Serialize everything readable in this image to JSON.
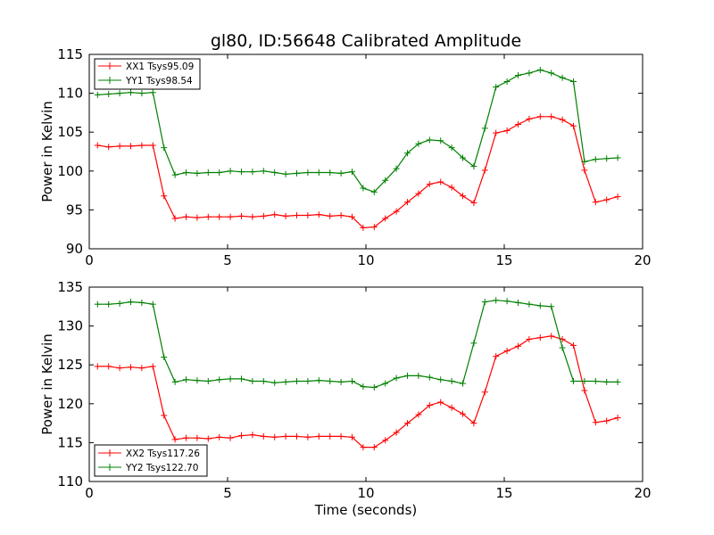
{
  "figure_title": "gl80, ID:56648 Calibrated Amplitude",
  "chart_data": [
    {
      "type": "line",
      "ylabel": "Power in Kelvin",
      "xlabel": "",
      "xlim": [
        0,
        20
      ],
      "ylim": [
        90,
        115
      ],
      "x_ticks": [
        "0",
        "5",
        "10",
        "15",
        "20"
      ],
      "y_ticks": [
        "90",
        "95",
        "100",
        "105",
        "110",
        "115"
      ],
      "grid": false,
      "legend_position": "top-left",
      "x": [
        0.3,
        0.7,
        1.1,
        1.5,
        1.9,
        2.3,
        2.7,
        3.1,
        3.5,
        3.9,
        4.3,
        4.7,
        5.1,
        5.5,
        5.9,
        6.3,
        6.7,
        7.1,
        7.5,
        7.9,
        8.3,
        8.7,
        9.1,
        9.5,
        9.9,
        10.3,
        10.7,
        11.1,
        11.5,
        11.9,
        12.3,
        12.7,
        13.1,
        13.5,
        13.9,
        14.3,
        14.7,
        15.1,
        15.5,
        15.9,
        16.3,
        16.7,
        17.1,
        17.5,
        17.9,
        18.3,
        18.7,
        19.1
      ],
      "series": [
        {
          "name": "XX1 Tsys95.09",
          "color": "#ff0000",
          "values": [
            103.3,
            103.1,
            103.2,
            103.2,
            103.3,
            103.3,
            96.8,
            93.9,
            94.1,
            94.0,
            94.1,
            94.1,
            94.1,
            94.2,
            94.1,
            94.2,
            94.4,
            94.2,
            94.3,
            94.3,
            94.4,
            94.2,
            94.3,
            94.1,
            92.7,
            92.8,
            93.9,
            94.8,
            96.0,
            97.1,
            98.3,
            98.6,
            97.9,
            96.8,
            95.9,
            100.1,
            104.9,
            105.2,
            106.0,
            106.7,
            107.0,
            107.0,
            106.6,
            105.8,
            100.1,
            96.0,
            96.3,
            96.7
          ]
        },
        {
          "name": "YY1 Tsys98.54",
          "color": "#008000",
          "values": [
            109.8,
            109.9,
            110.0,
            110.1,
            110.0,
            110.1,
            103.0,
            99.5,
            99.8,
            99.7,
            99.8,
            99.8,
            100.0,
            99.9,
            99.9,
            100.0,
            99.8,
            99.6,
            99.7,
            99.8,
            99.8,
            99.8,
            99.7,
            99.9,
            97.8,
            97.3,
            98.8,
            100.3,
            102.3,
            103.5,
            104.0,
            103.9,
            103.0,
            101.7,
            100.6,
            105.5,
            110.8,
            111.5,
            112.3,
            112.6,
            113.0,
            112.6,
            112.0,
            111.5,
            101.2,
            101.5,
            101.6,
            101.7
          ]
        }
      ]
    },
    {
      "type": "line",
      "ylabel": "Power in Kelvin",
      "xlabel": "Time (seconds)",
      "xlim": [
        0,
        20
      ],
      "ylim": [
        110,
        135
      ],
      "x_ticks": [
        "0",
        "5",
        "10",
        "15",
        "20"
      ],
      "y_ticks": [
        "110",
        "115",
        "120",
        "125",
        "130",
        "135"
      ],
      "grid": false,
      "legend_position": "bottom-left",
      "x": [
        0.3,
        0.7,
        1.1,
        1.5,
        1.9,
        2.3,
        2.7,
        3.1,
        3.5,
        3.9,
        4.3,
        4.7,
        5.1,
        5.5,
        5.9,
        6.3,
        6.7,
        7.1,
        7.5,
        7.9,
        8.3,
        8.7,
        9.1,
        9.5,
        9.9,
        10.3,
        10.7,
        11.1,
        11.5,
        11.9,
        12.3,
        12.7,
        13.1,
        13.5,
        13.9,
        14.3,
        14.7,
        15.1,
        15.5,
        15.9,
        16.3,
        16.7,
        17.1,
        17.5,
        17.9,
        18.3,
        18.7,
        19.1
      ],
      "series": [
        {
          "name": "XX2 Tsys117.26",
          "color": "#ff0000",
          "values": [
            124.8,
            124.8,
            124.6,
            124.7,
            124.6,
            124.8,
            118.5,
            115.4,
            115.6,
            115.6,
            115.5,
            115.7,
            115.6,
            115.9,
            116.0,
            115.8,
            115.7,
            115.8,
            115.8,
            115.7,
            115.8,
            115.8,
            115.8,
            115.7,
            114.4,
            114.4,
            115.3,
            116.3,
            117.5,
            118.6,
            119.8,
            120.2,
            119.5,
            118.7,
            117.5,
            121.5,
            126.1,
            126.8,
            127.4,
            128.3,
            128.5,
            128.7,
            128.3,
            127.5,
            121.7,
            117.6,
            117.8,
            118.2
          ]
        },
        {
          "name": "YY2 Tsys122.70",
          "color": "#008000",
          "values": [
            132.8,
            132.8,
            132.9,
            133.1,
            133.0,
            132.8,
            126.0,
            122.8,
            123.1,
            123.0,
            122.9,
            123.1,
            123.2,
            123.2,
            122.9,
            122.9,
            122.7,
            122.8,
            122.9,
            122.9,
            123.0,
            122.9,
            122.8,
            122.9,
            122.2,
            122.1,
            122.6,
            123.3,
            123.6,
            123.6,
            123.4,
            123.1,
            122.9,
            122.6,
            127.8,
            133.1,
            133.3,
            133.2,
            133.0,
            132.8,
            132.6,
            132.5,
            127.2,
            122.9,
            122.9,
            122.9,
            122.8,
            122.8
          ]
        }
      ]
    }
  ]
}
